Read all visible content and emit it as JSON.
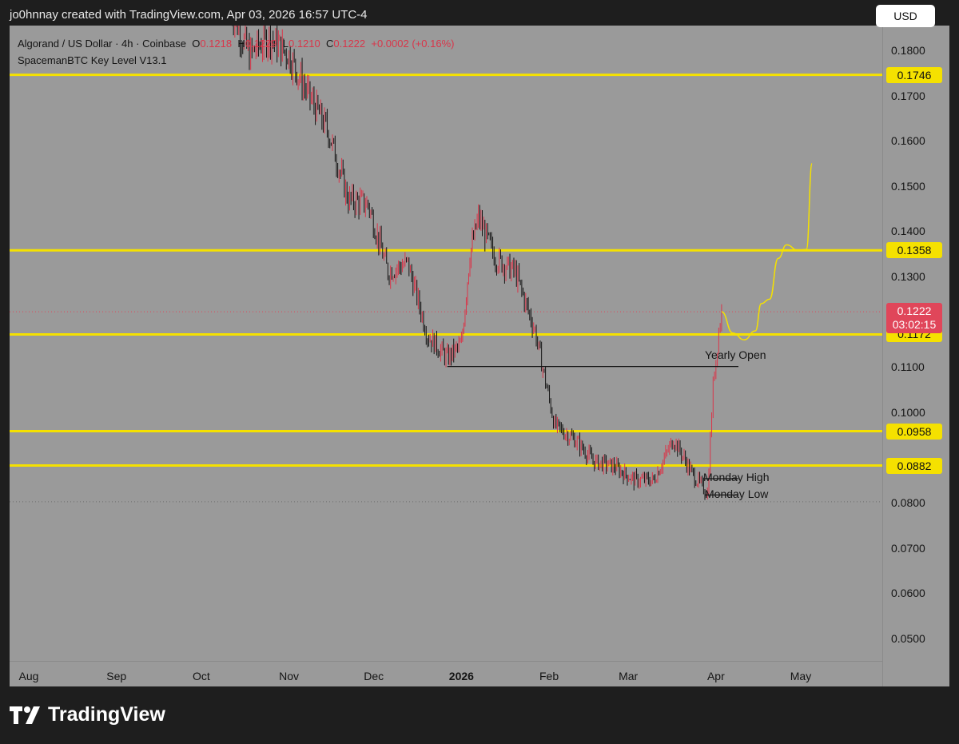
{
  "header": {
    "text": "jo0hnnay created with TradingView.com, Apr 03, 2026 16:57 UTC-4"
  },
  "legend": {
    "symbol": "Algorand / US Dollar · 4h · Coinbase",
    "o_label": "O",
    "o_value": "0.1218",
    "h_label": "H",
    "h_value": "0.1229",
    "l_label": "L",
    "l_value": "0.1210",
    "c_label": "C",
    "c_value": "0.1222",
    "change": "+0.0002 (+0.16%)",
    "indicator": "SpacemanBTC Key Level V13.1"
  },
  "toolbar": {
    "currency_label": "USD"
  },
  "price_badge": {
    "price": "0.1222",
    "countdown": "03:02:15"
  },
  "brand": {
    "name": "TradingView"
  },
  "colors": {
    "background": "#9a9a9a",
    "key_level": "#f5e100",
    "candle_up": "#d9364a",
    "candle_down": "#141414",
    "projection": "#f5e100"
  },
  "chart_data": {
    "type": "candlestick",
    "ylim": [
      0.045,
      0.1855
    ],
    "y_ticks": [
      "0.1800",
      "0.1700",
      "0.1600",
      "0.1500",
      "0.1400",
      "0.1300",
      "0.1100",
      "0.1000",
      "0.0800",
      "0.0700",
      "0.0600",
      "0.0500"
    ],
    "x_ticks": [
      {
        "label": "Aug",
        "bold": false
      },
      {
        "label": "Sep",
        "bold": false
      },
      {
        "label": "Oct",
        "bold": false
      },
      {
        "label": "Nov",
        "bold": false
      },
      {
        "label": "Dec",
        "bold": false
      },
      {
        "label": "2026",
        "bold": true
      },
      {
        "label": "Feb",
        "bold": false
      },
      {
        "label": "Mar",
        "bold": false
      },
      {
        "label": "Apr",
        "bold": false
      },
      {
        "label": "May",
        "bold": false
      }
    ],
    "key_levels": [
      {
        "value": 0.1746,
        "label": "0.1746"
      },
      {
        "value": 0.1358,
        "label": "0.1358"
      },
      {
        "value": 0.1172,
        "label": "0.1172"
      },
      {
        "value": 0.0958,
        "label": "0.0958"
      },
      {
        "value": 0.0882,
        "label": "0.0882"
      }
    ],
    "current_price": 0.1222,
    "annotations": [
      {
        "label": "Yearly Open",
        "value": 0.1101
      },
      {
        "label": "Monday High",
        "value": 0.0853
      },
      {
        "label": "Monday Low",
        "value": 0.0817
      }
    ],
    "price_path": [
      {
        "date": "2025-10-11",
        "price": 0.19
      },
      {
        "date": "2025-10-18",
        "price": 0.179
      },
      {
        "date": "2025-10-25",
        "price": 0.183
      },
      {
        "date": "2025-11-01",
        "price": 0.179
      },
      {
        "date": "2025-11-08",
        "price": 0.17
      },
      {
        "date": "2025-11-15",
        "price": 0.162
      },
      {
        "date": "2025-11-22",
        "price": 0.147
      },
      {
        "date": "2025-11-29",
        "price": 0.146
      },
      {
        "date": "2025-12-06",
        "price": 0.131
      },
      {
        "date": "2025-12-13",
        "price": 0.133
      },
      {
        "date": "2025-12-20",
        "price": 0.117
      },
      {
        "date": "2025-12-27",
        "price": 0.112
      },
      {
        "date": "2026-01-01",
        "price": 0.115
      },
      {
        "date": "2026-01-04",
        "price": 0.135
      },
      {
        "date": "2026-01-07",
        "price": 0.143
      },
      {
        "date": "2026-01-13",
        "price": 0.134
      },
      {
        "date": "2026-01-20",
        "price": 0.131
      },
      {
        "date": "2026-01-27",
        "price": 0.118
      },
      {
        "date": "2026-02-03",
        "price": 0.097
      },
      {
        "date": "2026-02-10",
        "price": 0.094
      },
      {
        "date": "2026-02-17",
        "price": 0.089
      },
      {
        "date": "2026-02-24",
        "price": 0.088
      },
      {
        "date": "2026-03-03",
        "price": 0.085
      },
      {
        "date": "2026-03-10",
        "price": 0.085
      },
      {
        "date": "2026-03-17",
        "price": 0.094
      },
      {
        "date": "2026-03-24",
        "price": 0.086
      },
      {
        "date": "2026-03-29",
        "price": 0.082
      },
      {
        "date": "2026-03-31",
        "price": 0.106
      },
      {
        "date": "2026-04-02",
        "price": 0.118
      },
      {
        "date": "2026-04-03",
        "price": 0.1222
      }
    ],
    "projection": [
      {
        "date": "2026-04-03",
        "price": 0.1222
      },
      {
        "date": "2026-04-07",
        "price": 0.1175
      },
      {
        "date": "2026-04-11",
        "price": 0.116
      },
      {
        "date": "2026-04-15",
        "price": 0.118
      },
      {
        "date": "2026-04-17",
        "price": 0.124
      },
      {
        "date": "2026-04-20",
        "price": 0.125
      },
      {
        "date": "2026-04-23",
        "price": 0.134
      },
      {
        "date": "2026-04-26",
        "price": 0.137
      },
      {
        "date": "2026-04-30",
        "price": 0.1358
      },
      {
        "date": "2026-05-03",
        "price": 0.136
      },
      {
        "date": "2026-05-05",
        "price": 0.155
      }
    ]
  }
}
